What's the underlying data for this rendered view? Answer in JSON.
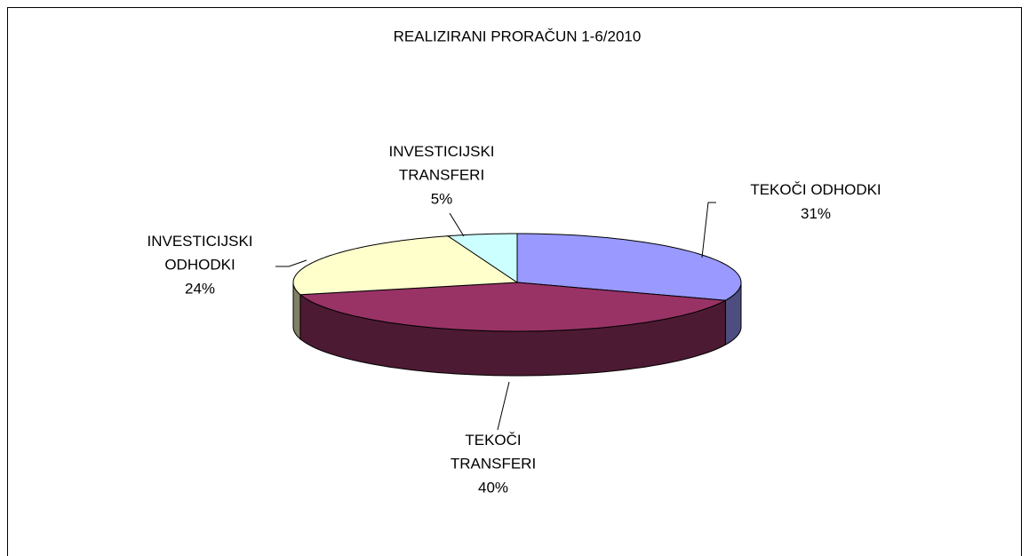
{
  "chart_data": {
    "type": "pie",
    "title": "REALIZIRANI PRORAČUN 1-6/2010",
    "categories": [
      "TEKOČI ODHODKI",
      "TEKOČI TRANSFERI",
      "INVESTICIJSKI ODHODKI",
      "INVESTICIJSKI TRANSFERI"
    ],
    "values": [
      31,
      40,
      24,
      5
    ],
    "value_labels": [
      "31%",
      "40%",
      "24%",
      "5%"
    ],
    "colors": [
      "#9999ff",
      "#993366",
      "#ffffcc",
      "#ccffff"
    ]
  }
}
